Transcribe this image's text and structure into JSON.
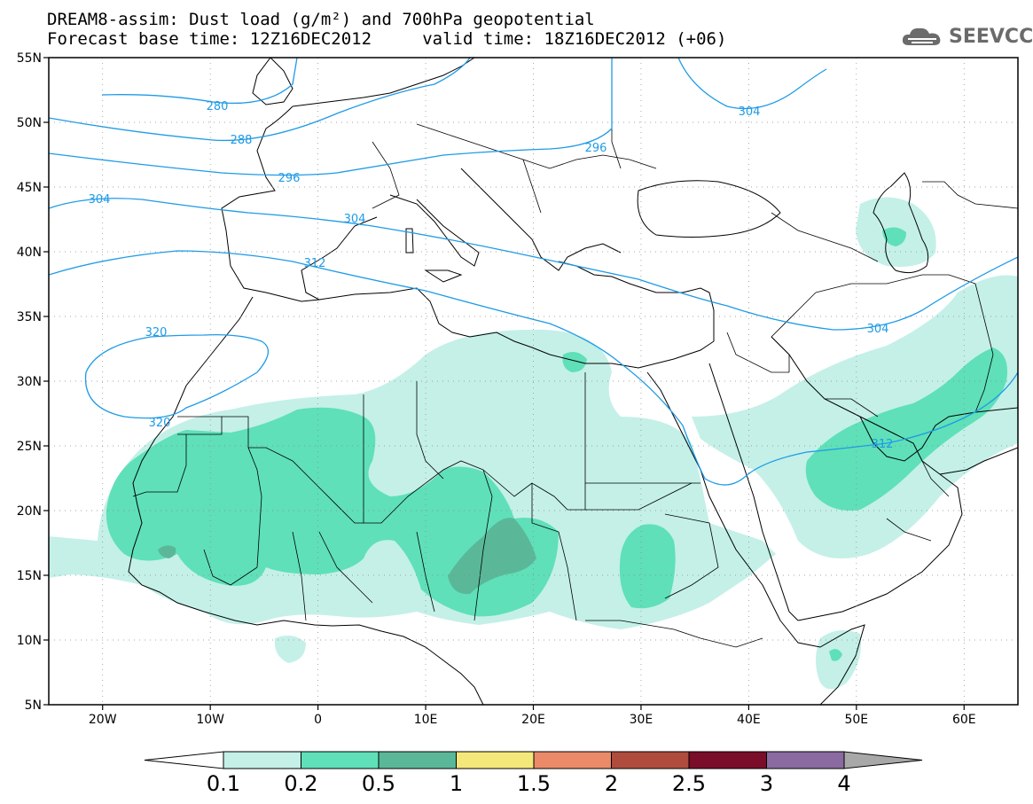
{
  "header": {
    "line1": "DREAM8-assim: Dust load (g/m²) and 700hPa geopotential",
    "line2": "Forecast base time: 12Z16DEC2012     valid time: 18Z16DEC2012 (+06)"
  },
  "logo": {
    "text": "SEEVCCC",
    "icon": "cloud-icon"
  },
  "map": {
    "lat_ticks": [
      "55N",
      "50N",
      "45N",
      "40N",
      "35N",
      "30N",
      "25N",
      "20N",
      "15N",
      "10N",
      "5N"
    ],
    "lon_ticks": [
      "20W",
      "10W",
      "0",
      "10E",
      "20E",
      "30E",
      "40E",
      "50E",
      "60E"
    ],
    "contour_labels": [
      {
        "id": "c280",
        "text": "280"
      },
      {
        "id": "c288",
        "text": "288"
      },
      {
        "id": "c296a",
        "text": "296"
      },
      {
        "id": "c296b",
        "text": "296"
      },
      {
        "id": "c304a",
        "text": "304"
      },
      {
        "id": "c304b",
        "text": "304"
      },
      {
        "id": "c304c",
        "text": "304"
      },
      {
        "id": "c304d",
        "text": "304"
      },
      {
        "id": "c312a",
        "text": "312"
      },
      {
        "id": "c312b",
        "text": "312"
      },
      {
        "id": "c320a",
        "text": "320"
      },
      {
        "id": "c320b",
        "text": "320"
      }
    ],
    "colors": {
      "contour": "#1e9be6",
      "dust_01": "#c4f0e8",
      "dust_02": "#5fe0b8",
      "dust_05": "#5ab898",
      "coast": "#000000"
    }
  },
  "colorbar": {
    "labels": [
      "0.1",
      "0.2",
      "0.5",
      "1",
      "1.5",
      "2",
      "2.5",
      "3",
      "4"
    ],
    "colors": [
      "#c4f0e8",
      "#5fe0b8",
      "#5ab898",
      "#f5e87a",
      "#ea8a68",
      "#b04c3e",
      "#7a0d2a",
      "#8a6aa0",
      "#a8a8a8"
    ]
  }
}
